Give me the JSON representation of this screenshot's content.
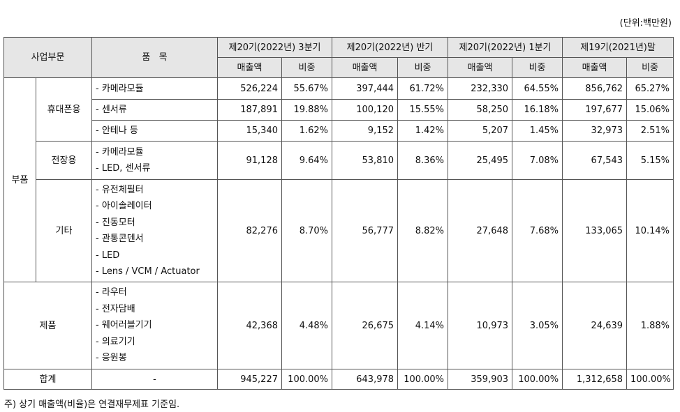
{
  "unit_note": "(단위:백만원)",
  "header": {
    "segment": "사업부문",
    "item": "품   목",
    "periods": [
      "제20기(2022년) 3분기",
      "제20기(2022년) 반기",
      "제20기(2022년) 1분기",
      "제19기(2021년)말"
    ],
    "sales": "매출액",
    "ratio": "비중"
  },
  "rows": {
    "parts": "부품",
    "mobile": {
      "label": "휴대폰용",
      "camera": {
        "item": "- 카메라모듈",
        "v": [
          "526,224",
          "55.67%",
          "397,444",
          "61.72%",
          "232,330",
          "64.55%",
          "856,762",
          "65.27%"
        ]
      },
      "sensor": {
        "item": "- 센서류",
        "v": [
          "187,891",
          "19.88%",
          "100,120",
          "15.55%",
          "58,250",
          "16.18%",
          "197,677",
          "15.06%"
        ]
      },
      "antenna": {
        "item": "- 안테나 등",
        "v": [
          "15,340",
          "1.62%",
          "9,152",
          "1.42%",
          "5,207",
          "1.45%",
          "32,973",
          "2.51%"
        ]
      }
    },
    "auto": {
      "label": "전장용",
      "items": [
        "- 카메라모듈",
        "- LED, 센서류"
      ],
      "v": [
        "91,128",
        "9.64%",
        "53,810",
        "8.36%",
        "25,495",
        "7.08%",
        "67,543",
        "5.15%"
      ]
    },
    "other": {
      "label": "기타",
      "items": [
        "- 유전체필터",
        "- 아이솔레이터",
        "- 진동모터",
        "- 관통콘덴서",
        "- LED",
        "- Lens / VCM / Actuator"
      ],
      "v": [
        "82,276",
        "8.70%",
        "56,777",
        "8.82%",
        "27,648",
        "7.68%",
        "133,065",
        "10.14%"
      ]
    },
    "products": {
      "label": "제품",
      "items": [
        "- 라우터",
        "- 전자담배",
        "- 웨어러블기기",
        "- 의료기기",
        "- 응원봉"
      ],
      "v": [
        "42,368",
        "4.48%",
        "26,675",
        "4.14%",
        "10,973",
        "3.05%",
        "24,639",
        "1.88%"
      ]
    },
    "total": {
      "label": "합계",
      "item": "-",
      "v": [
        "945,227",
        "100.00%",
        "643,978",
        "100.00%",
        "359,903",
        "100.00%",
        "1,312,658",
        "100.00%"
      ]
    }
  },
  "footnote": "주) 상기 매출액(비율)은 연결재무제표 기준임."
}
